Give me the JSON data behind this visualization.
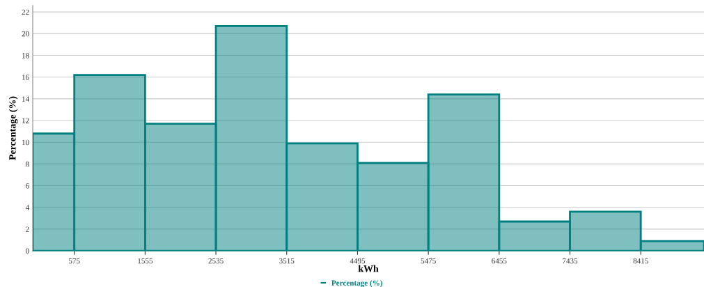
{
  "chart_data": {
    "type": "histogram",
    "xlabel": "kWh",
    "ylabel": "Percentage (%)",
    "bins": [
      0,
      575,
      1555,
      2535,
      3515,
      4495,
      5475,
      6455,
      7435,
      8415,
      9290
    ],
    "series": [
      {
        "name": "Percentage (%)",
        "color": "#008080",
        "values": [
          10.8,
          16.2,
          11.7,
          20.7,
          9.9,
          8.1,
          14.4,
          2.7,
          3.6,
          0.9
        ]
      }
    ],
    "xlim": [
      0,
      9290
    ],
    "xticks": [
      575,
      1555,
      2535,
      3515,
      4495,
      5475,
      6455,
      7435,
      8415
    ],
    "ylim": [
      0,
      22.6
    ],
    "yticks": [
      0,
      2,
      4,
      6,
      8,
      10,
      12,
      14,
      16,
      18,
      20,
      22
    ],
    "grid": "y",
    "legend": "bottom"
  }
}
